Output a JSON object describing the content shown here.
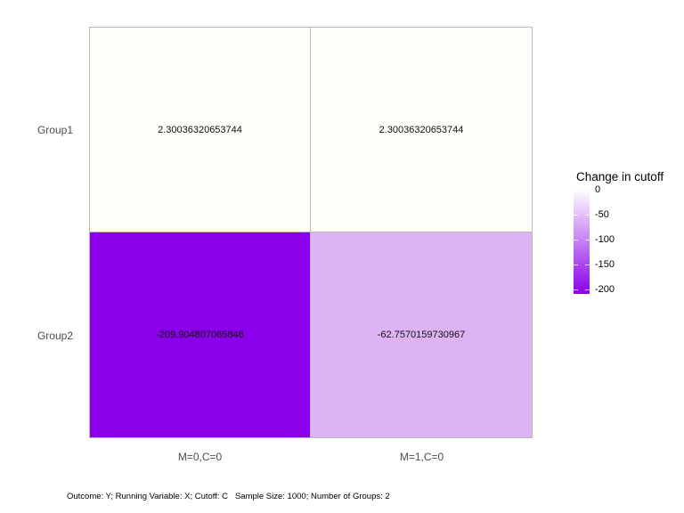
{
  "chart_data": {
    "type": "heatmap",
    "x_categories": [
      "M=0,C=0",
      "M=1,C=0"
    ],
    "y_categories": [
      "Group1",
      "Group2"
    ],
    "values": [
      [
        2.30036320653744,
        2.30036320653744
      ],
      [
        -209.904807065846,
        -62.7570159730967
      ]
    ],
    "cell_labels": [
      [
        "2.30036320653744",
        "2.30036320653744"
      ],
      [
        "-209.904807065846",
        "-62.7570159730967"
      ]
    ],
    "cell_colors": [
      [
        "#fffef8",
        "#fffef8"
      ],
      [
        "#8a00e8",
        "#deb3f5"
      ]
    ],
    "legend": {
      "title": "Change in cutoff",
      "ticks": [
        "0",
        "-50",
        "-100",
        "-150",
        "-200"
      ],
      "high_color": "#ffffff",
      "low_color": "#8a00e8",
      "gradient_css": "linear-gradient(to bottom, #ffffff 0%, #8a00e8 100%)",
      "position": "right",
      "value_range": [
        -209.904807065846,
        2.30036320653744
      ]
    },
    "caption": "Outcome: Y; Running Variable: X; Cutoff: C   Sample Size: 1000; Number of Groups: 2",
    "panel_border_color": "#b9b9b9",
    "grid": "off"
  }
}
